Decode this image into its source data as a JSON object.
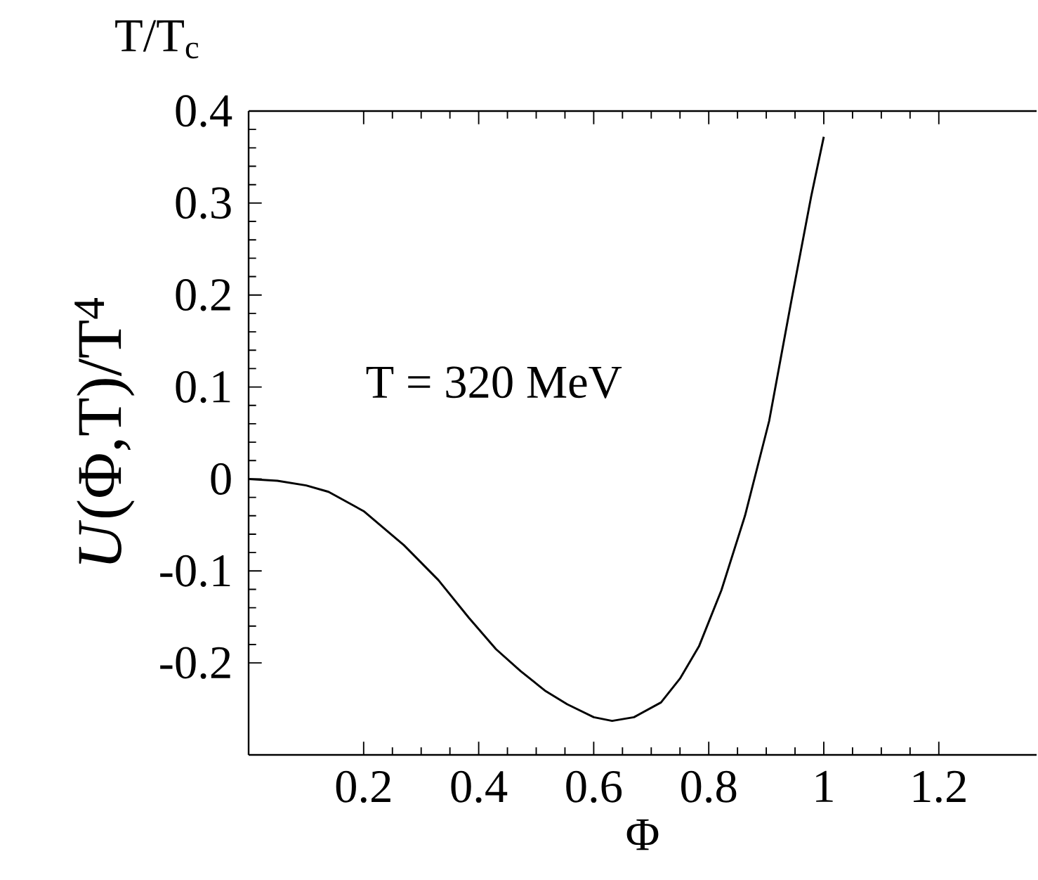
{
  "chart_data": {
    "type": "line",
    "xlabel": "Φ",
    "ylabel": "*U*(Φ,T)/T$^{4}$",
    "annotations": [
      "T/T$_{c}$",
      "T = 320  MeV"
    ],
    "x": [
      0,
      0.05,
      0.1,
      0.139,
      0.2,
      0.27,
      0.33,
      0.383,
      0.43,
      0.473,
      0.515,
      0.554,
      0.6,
      0.632,
      0.67,
      0.717,
      0.75,
      0.783,
      0.822,
      0.863,
      0.905,
      0.944,
      0.978,
      1.0
    ],
    "series": [
      {
        "color": "#000000",
        "values": [
          0,
          -0.002,
          -0.007,
          -0.014,
          -0.035,
          -0.072,
          -0.11,
          -0.151,
          -0.185,
          -0.209,
          -0.23,
          -0.245,
          -0.259,
          -0.263,
          -0.259,
          -0.243,
          -0.217,
          -0.182,
          -0.121,
          -0.04,
          0.063,
          0.195,
          0.307,
          0.372
        ]
      }
    ],
    "xlim": [
      0,
      1.37
    ],
    "ylim": [
      -0.3,
      0.4
    ],
    "xticks": [
      0.2,
      0.4,
      0.6,
      0.8,
      1,
      1.2
    ],
    "yticks": [
      -0.2,
      -0.1,
      0,
      0.1,
      0.2,
      0.3,
      0.4
    ],
    "grid": false,
    "marker": "none",
    "line_style": "solid"
  }
}
